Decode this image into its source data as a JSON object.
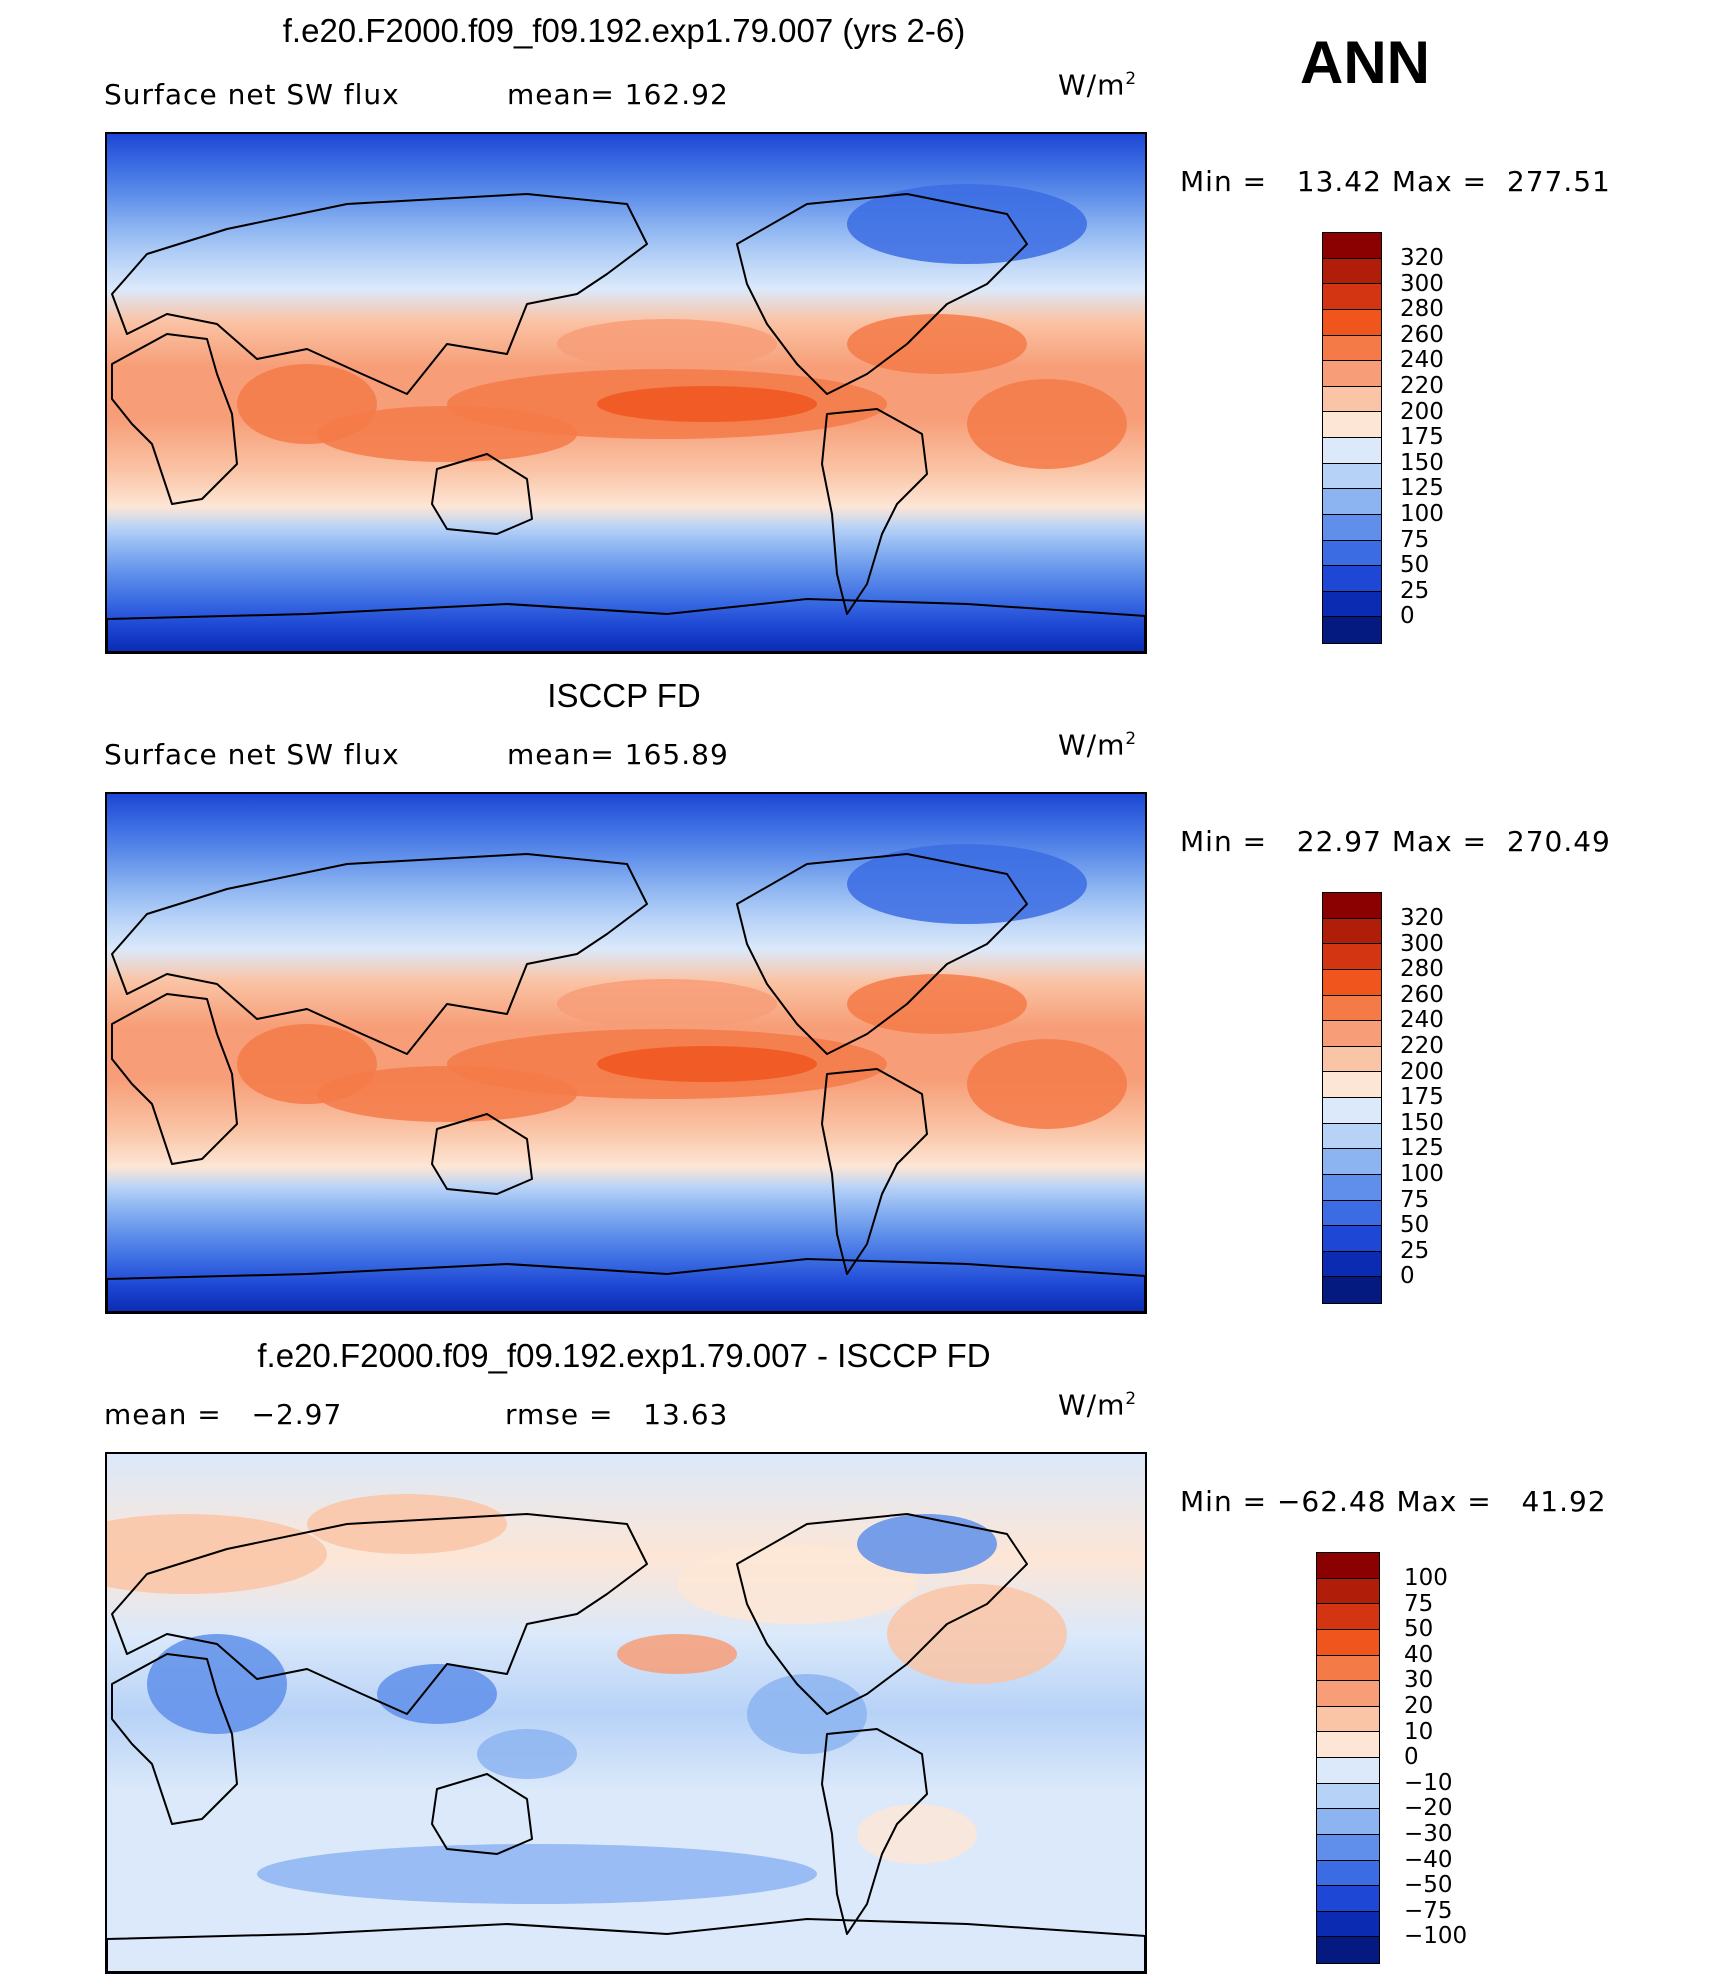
{
  "season": "ANN",
  "units_base": "W/m",
  "units_exp": "2",
  "panels": [
    {
      "title": "f.e20.F2000.f09_f09.192.exp1.79.007 (yrs 2-6)",
      "left_label": "Surface net SW flux",
      "stat_label": "mean=",
      "stat_value": "162.92",
      "min_text": "Min  =",
      "min_value": "13.42",
      "max_text": "Max  =",
      "max_value": "277.51",
      "stat_mean": 162.92,
      "min": 13.42,
      "max": 277.51,
      "levels": [
        "320",
        "300",
        "280",
        "260",
        "240",
        "220",
        "200",
        "175",
        "150",
        "125",
        "100",
        "75",
        "50",
        "25",
        "0"
      ],
      "colors": [
        "#8b0000",
        "#b01d08",
        "#d33412",
        "#f0551e",
        "#f47a48",
        "#f79e78",
        "#fac4a6",
        "#fde6d6",
        "#dbe9fa",
        "#b7d2f7",
        "#8cb4f1",
        "#5f8fea",
        "#3b6ce3",
        "#1d47d4",
        "#0b2bb3",
        "#051a80"
      ]
    },
    {
      "title": "ISCCP FD",
      "left_label": "Surface net SW flux",
      "stat_label": "mean=",
      "stat_value": "165.89",
      "min_text": "Min  =",
      "min_value": "22.97",
      "max_text": "Max  =",
      "max_value": "270.49",
      "stat_mean": 165.89,
      "min": 22.97,
      "max": 270.49,
      "levels": [
        "320",
        "300",
        "280",
        "260",
        "240",
        "220",
        "200",
        "175",
        "150",
        "125",
        "100",
        "75",
        "50",
        "25",
        "0"
      ],
      "colors": [
        "#8b0000",
        "#b01d08",
        "#d33412",
        "#f0551e",
        "#f47a48",
        "#f79e78",
        "#fac4a6",
        "#fde6d6",
        "#dbe9fa",
        "#b7d2f7",
        "#8cb4f1",
        "#5f8fea",
        "#3b6ce3",
        "#1d47d4",
        "#0b2bb3",
        "#051a80"
      ]
    },
    {
      "title": "f.e20.F2000.f09_f09.192.exp1.79.007 - ISCCP FD",
      "left_label": "mean  =",
      "left_value": "−2.97",
      "stat_label": "rmse  =",
      "stat_value": "13.63",
      "min_text": "Min  =",
      "min_value": "−62.48",
      "max_text": "Max  =",
      "max_value": "41.92",
      "stat_mean": -2.97,
      "stat_rmse": 13.63,
      "min": -62.48,
      "max": 41.92,
      "levels": [
        "100",
        "75",
        "50",
        "40",
        "30",
        "20",
        "10",
        "0",
        "−10",
        "−20",
        "−30",
        "−40",
        "−50",
        "−75",
        "−100"
      ],
      "colors": [
        "#8b0000",
        "#b01d08",
        "#d33412",
        "#f0551e",
        "#f47a48",
        "#f79e78",
        "#fac4a6",
        "#fde6d6",
        "#dbe9fa",
        "#b7d2f7",
        "#8cb4f1",
        "#5f8fea",
        "#3b6ce3",
        "#1d47d4",
        "#0b2bb3",
        "#051a80"
      ]
    }
  ]
}
